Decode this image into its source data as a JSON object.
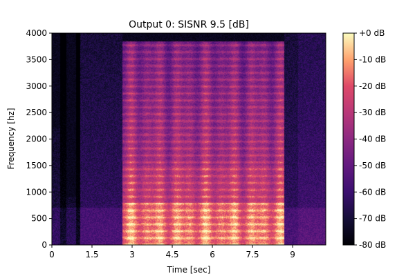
{
  "chart_data": {
    "type": "heatmap",
    "title": "Output 0: SISNR 9.5 [dB]",
    "xlabel": "Time [sec]",
    "ylabel": "Frequency [hz]",
    "xlim": [
      0,
      10.24
    ],
    "ylim": [
      0,
      4000
    ],
    "x_ticks": [
      {
        "value": 0,
        "label": "0"
      },
      {
        "value": 1.5,
        "label": "1.5"
      },
      {
        "value": 3,
        "label": "3"
      },
      {
        "value": 4.5,
        "label": "4.5"
      },
      {
        "value": 6,
        "label": "6"
      },
      {
        "value": 7.5,
        "label": "7.5"
      },
      {
        "value": 9,
        "label": "9"
      }
    ],
    "y_ticks": [
      {
        "value": 0,
        "label": "0"
      },
      {
        "value": 500,
        "label": "500"
      },
      {
        "value": 1000,
        "label": "1000"
      },
      {
        "value": 1500,
        "label": "1500"
      },
      {
        "value": 2000,
        "label": "2000"
      },
      {
        "value": 2500,
        "label": "2500"
      },
      {
        "value": 3000,
        "label": "3000"
      },
      {
        "value": 3500,
        "label": "3500"
      },
      {
        "value": 4000,
        "label": "4000"
      }
    ],
    "colorbar": {
      "colormap": "magma",
      "range": [
        -80,
        0
      ],
      "ticks": [
        {
          "value": 0,
          "label": "+0 dB"
        },
        {
          "value": -10,
          "label": "-10 dB"
        },
        {
          "value": -20,
          "label": "-20 dB"
        },
        {
          "value": -30,
          "label": "-30 dB"
        },
        {
          "value": -40,
          "label": "-40 dB"
        },
        {
          "value": -50,
          "label": "-50 dB"
        },
        {
          "value": -60,
          "label": "-60 dB"
        },
        {
          "value": -70,
          "label": "-70 dB"
        },
        {
          "value": -80,
          "label": "-80 dB"
        }
      ]
    },
    "activity_segments": [
      {
        "x0": 0,
        "x1": 0.3,
        "fmax": 2200,
        "level_db": -68
      },
      {
        "x0": 0.3,
        "x1": 0.55,
        "fmax": 4000,
        "level_db": -78
      },
      {
        "x0": 0.55,
        "x1": 0.9,
        "fmax": 900,
        "level_db": -70
      },
      {
        "x0": 0.9,
        "x1": 1.05,
        "fmax": 4000,
        "level_db": -80
      },
      {
        "x0": 1.05,
        "x1": 2.65,
        "fmax": 4000,
        "level_db": -62
      },
      {
        "x0": 2.65,
        "x1": 8.7,
        "fmax": 3850,
        "level_db": -30
      },
      {
        "x0": 8.7,
        "x1": 9.2,
        "fmax": 4000,
        "level_db": -62
      },
      {
        "x0": 9.2,
        "x1": 10.24,
        "fmax": 4000,
        "level_db": -58
      }
    ]
  }
}
